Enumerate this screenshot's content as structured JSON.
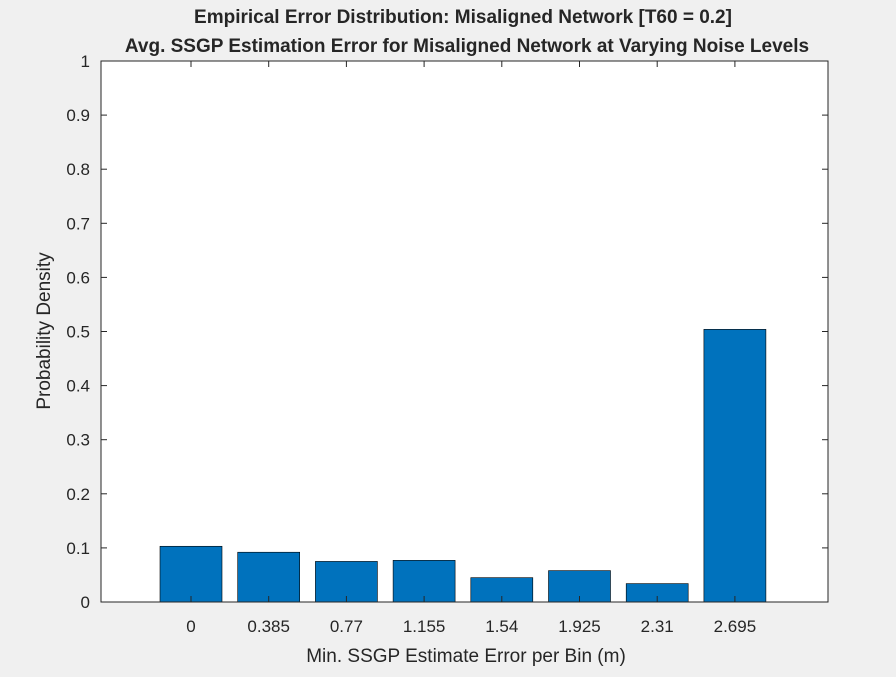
{
  "chart_data": {
    "type": "bar",
    "title": "Empirical Error Distribution: Misaligned Network [T60 = 0.2]",
    "subtitle": "Avg. SSGP Estimation Error for Misaligned Network at Varying Noise Levels",
    "xlabel": "Min. SSGP Estimate Error per Bin (m)",
    "ylabel": "Probability Density",
    "categories": [
      "0",
      "0.385",
      "0.77",
      "1.155",
      "1.54",
      "1.925",
      "2.31",
      "2.695"
    ],
    "values": [
      0.103,
      0.092,
      0.075,
      0.077,
      0.045,
      0.058,
      0.034,
      0.504
    ],
    "ylim": [
      0,
      1
    ],
    "yticks": [
      "0",
      "0.1",
      "0.2",
      "0.3",
      "0.4",
      "0.5",
      "0.6",
      "0.7",
      "0.8",
      "0.9",
      "1"
    ],
    "bar_color": "#0072bd",
    "grid": false,
    "legend": "none"
  }
}
